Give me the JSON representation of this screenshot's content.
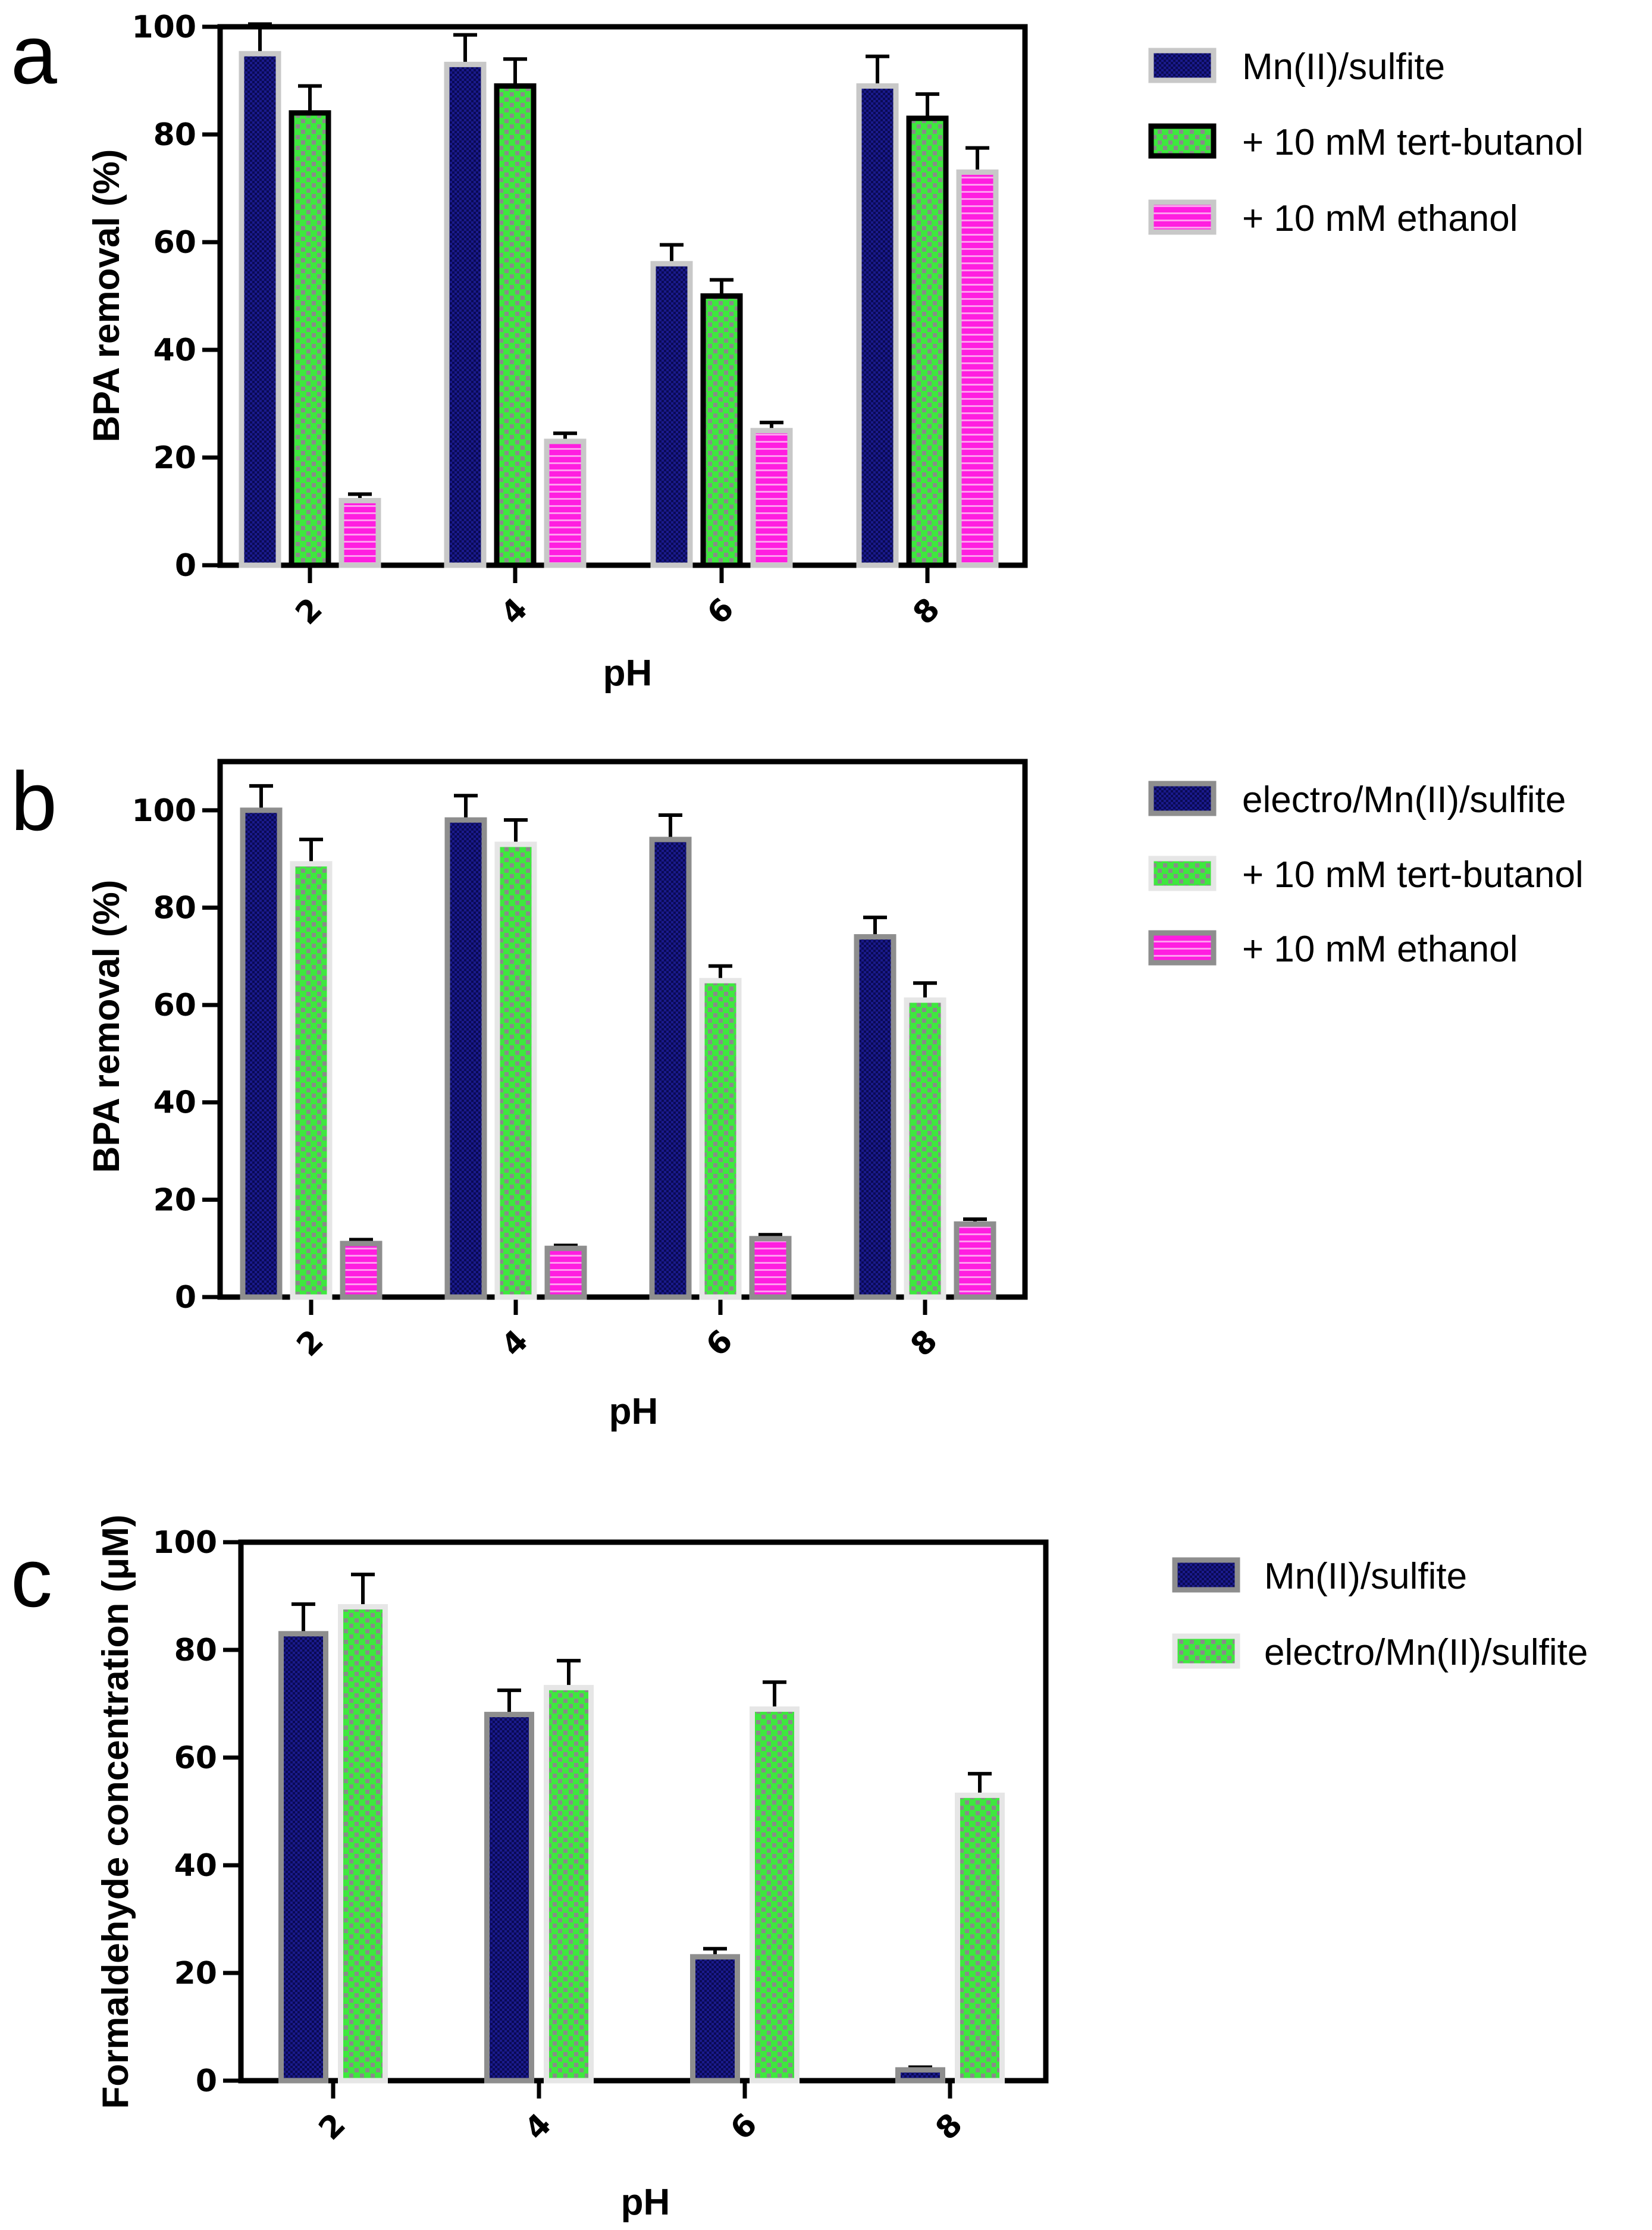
{
  "colors": {
    "navy": "#1a1a8c",
    "navy_dark": "#0a0a55",
    "green": "#3ee83e",
    "green_check": "#8a8a8a",
    "magenta": "#ff1ee0",
    "magenta_line": "#ff9cf0",
    "frame_gray": "#8e8e8e",
    "frame_light": "#e6e6e6",
    "frame_black": "#000000",
    "error_bar": "#000000"
  },
  "chart_data": [
    {
      "panel": "a",
      "type": "bar",
      "xlabel": "pH",
      "ylabel": "BPA removal (%)",
      "ylim": [
        0,
        100
      ],
      "yticks": [
        0,
        20,
        40,
        60,
        80,
        100
      ],
      "categories": [
        "2",
        "4",
        "6",
        "8"
      ],
      "legend_position": "right",
      "series": [
        {
          "name": "Mn(II)/sulfite",
          "pattern": "navy",
          "frame": "light",
          "values": [
            95,
            93,
            56,
            89
          ],
          "errors": [
            5.5,
            5.5,
            3.5,
            5.5
          ]
        },
        {
          "name": "+ 10 mM tert-butanol",
          "pattern": "check",
          "frame": "black",
          "values": [
            84,
            89,
            50,
            83
          ],
          "errors": [
            5,
            5,
            3,
            4.5
          ]
        },
        {
          "name": "+ 10 mM ethanol",
          "pattern": "stripe",
          "frame": "light",
          "values": [
            12,
            23,
            25,
            73
          ],
          "errors": [
            1.2,
            1.5,
            1.5,
            4.5
          ]
        }
      ]
    },
    {
      "panel": "b",
      "type": "bar",
      "xlabel": "pH",
      "ylabel": "BPA removal (%)",
      "ylim": [
        0,
        110
      ],
      "yticks": [
        0,
        20,
        40,
        60,
        80,
        100
      ],
      "categories": [
        "2",
        "4",
        "6",
        "8"
      ],
      "legend_position": "right",
      "series": [
        {
          "name": "electro/Mn(II)/sulfite",
          "pattern": "navy",
          "frame": "gray",
          "values": [
            100,
            98,
            94,
            74
          ],
          "errors": [
            5,
            5,
            5,
            4
          ]
        },
        {
          "name": "+ 10 mM tert-butanol",
          "pattern": "check",
          "frame": "light",
          "values": [
            89,
            93,
            65,
            61
          ],
          "errors": [
            5,
            5,
            3,
            3.5
          ]
        },
        {
          "name": "+ 10 mM ethanol",
          "pattern": "stripe",
          "frame": "gray",
          "values": [
            11,
            10,
            12,
            15
          ],
          "errors": [
            0.8,
            0.6,
            0.8,
            1
          ]
        }
      ]
    },
    {
      "panel": "c",
      "type": "bar",
      "xlabel": "pH",
      "ylabel": "Formaldehyde concentration (μM)",
      "ylim": [
        0,
        100
      ],
      "yticks": [
        0,
        20,
        40,
        60,
        80,
        100
      ],
      "categories": [
        "2",
        "4",
        "6",
        "8"
      ],
      "legend_position": "right",
      "series": [
        {
          "name": "Mn(II)/sulfite",
          "pattern": "navy",
          "frame": "gray",
          "values": [
            83,
            68,
            23,
            2
          ],
          "errors": [
            5.5,
            4.5,
            1.5,
            0.5
          ]
        },
        {
          "name": "electro/Mn(II)/sulfite",
          "pattern": "check",
          "frame": "light",
          "values": [
            88,
            73,
            69,
            53
          ],
          "errors": [
            6,
            5,
            5,
            4
          ]
        }
      ]
    }
  ]
}
